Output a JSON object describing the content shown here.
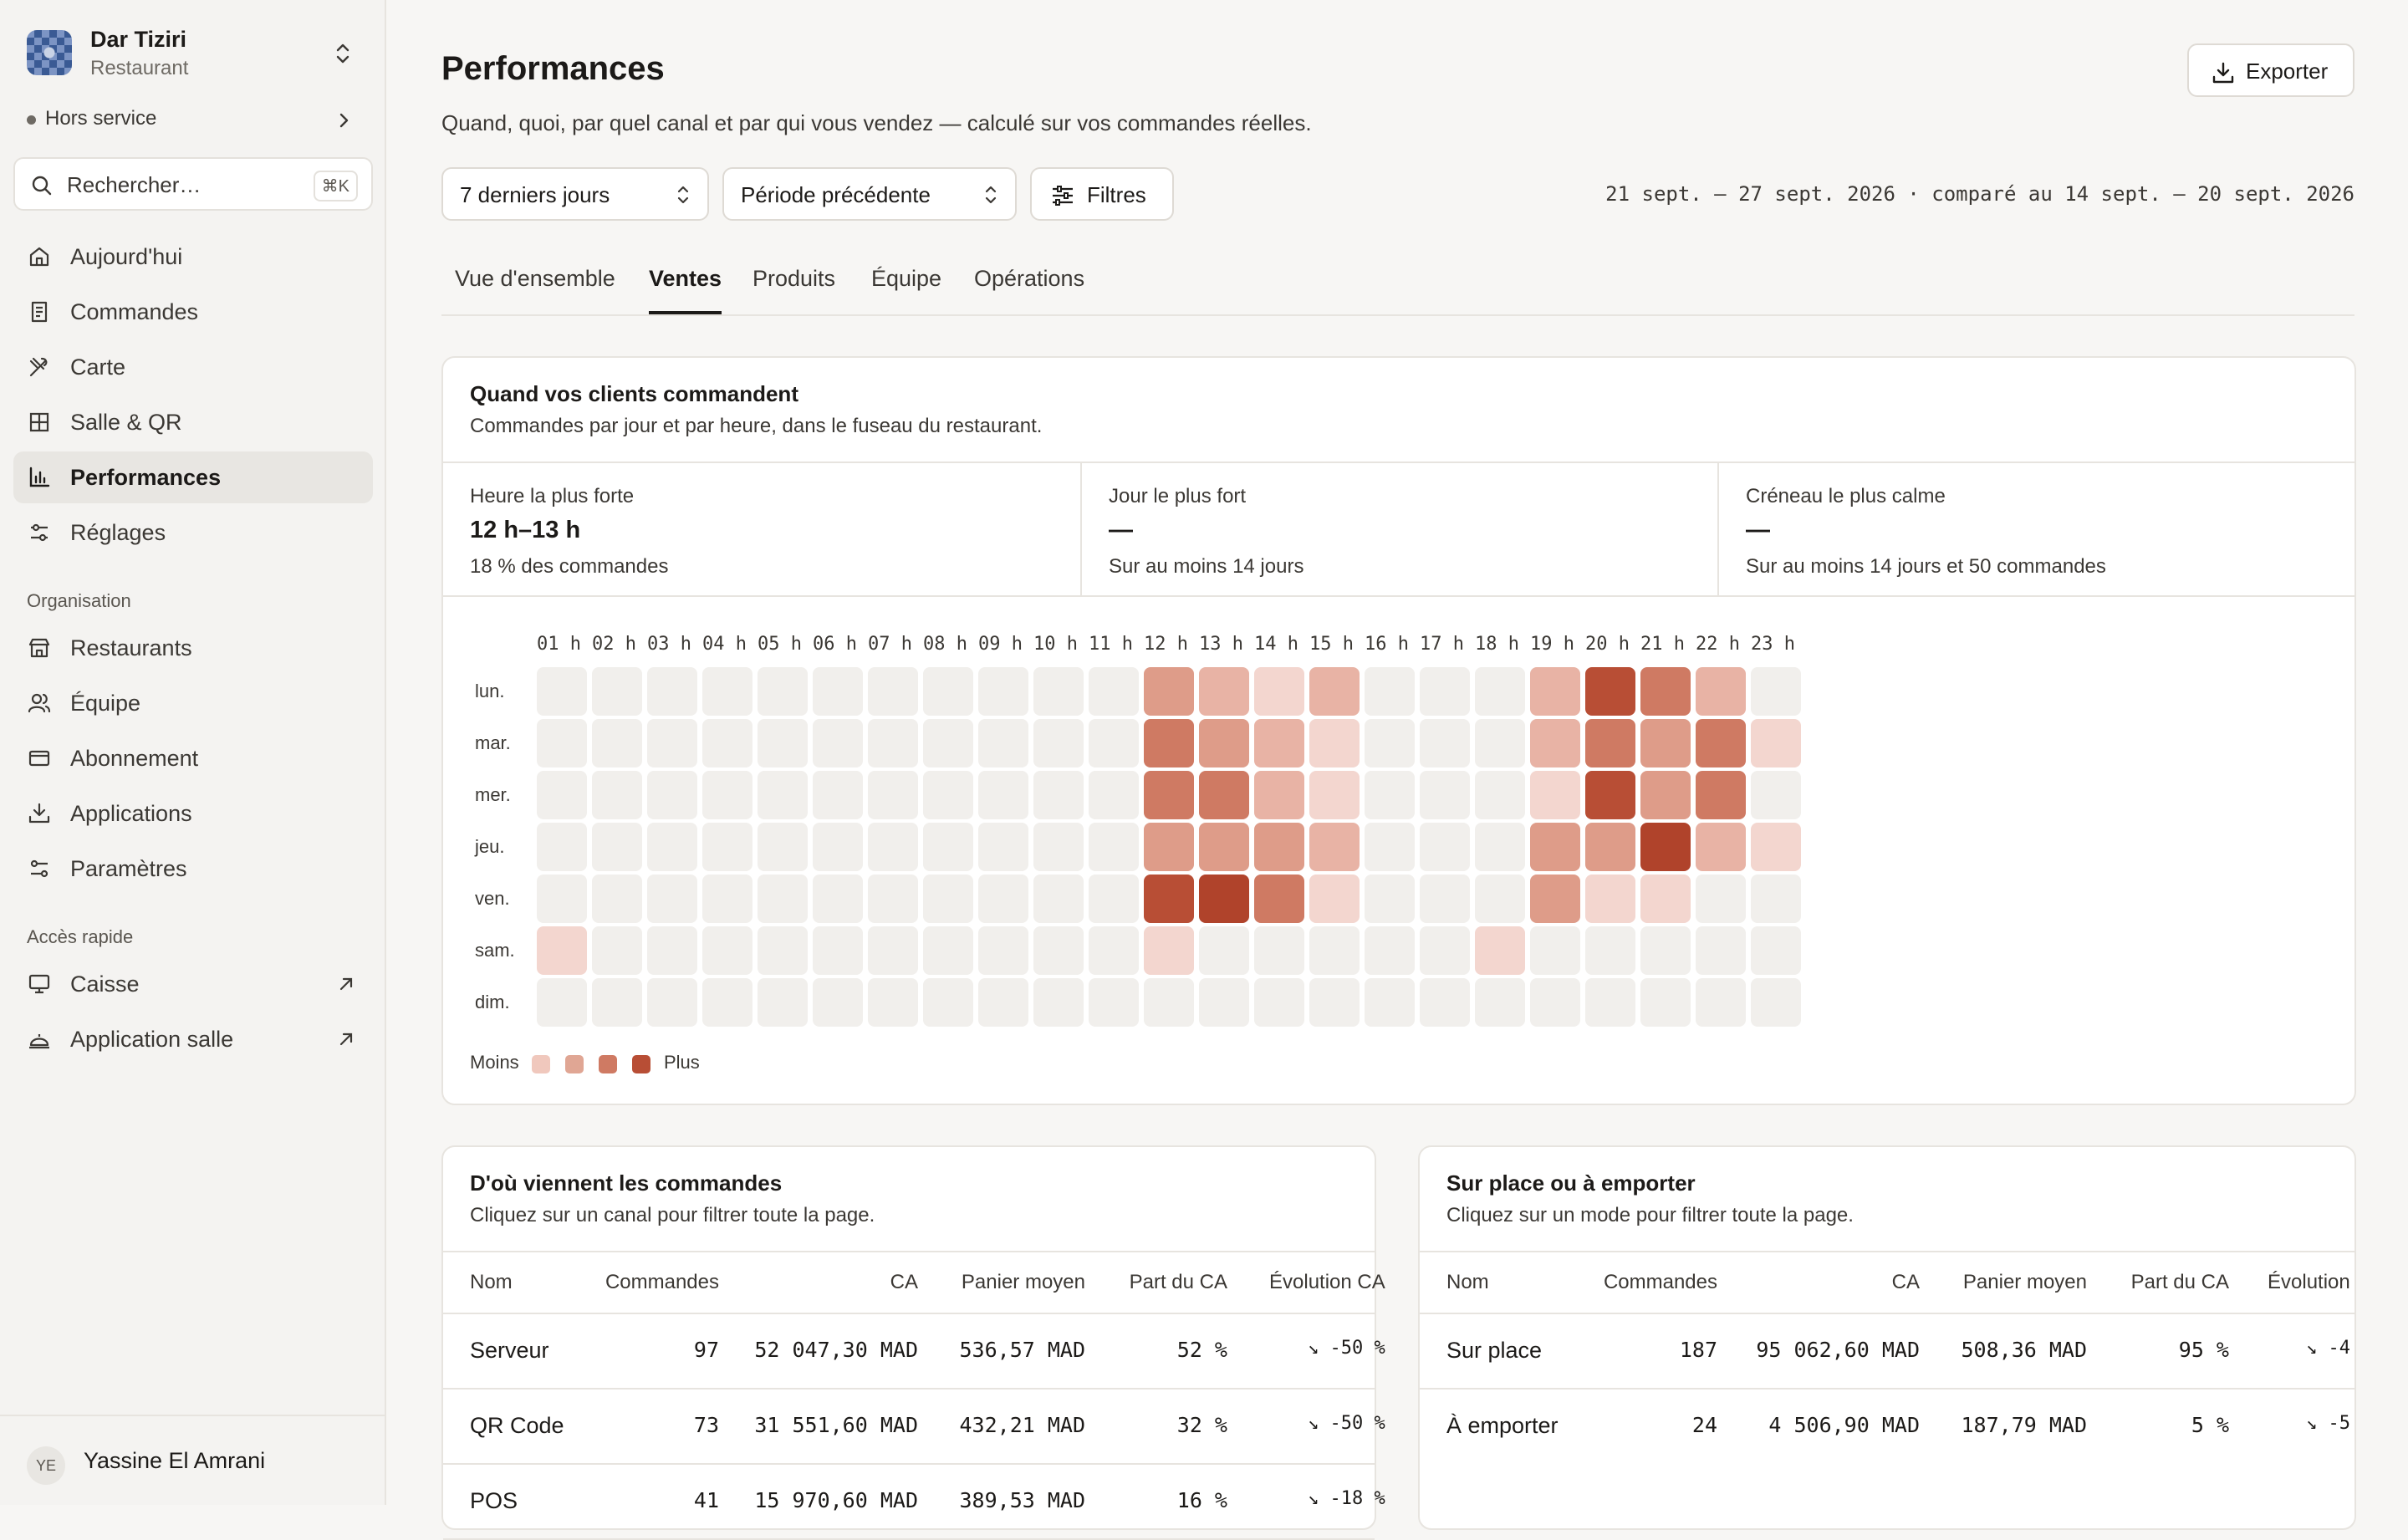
{
  "org": {
    "name": "Dar Tiziri",
    "type": "Restaurant"
  },
  "status": {
    "label": "Hors service"
  },
  "search": {
    "placeholder": "Rechercher…",
    "shortcut": "⌘K"
  },
  "nav": [
    {
      "label": "Aujourd'hui",
      "icon": "home-icon"
    },
    {
      "label": "Commandes",
      "icon": "receipt-icon"
    },
    {
      "label": "Carte",
      "icon": "utensils-icon"
    },
    {
      "label": "Salle & QR",
      "icon": "grid-icon"
    },
    {
      "label": "Performances",
      "icon": "bar-chart-icon",
      "active": true
    },
    {
      "label": "Réglages",
      "icon": "sliders-icon"
    }
  ],
  "org_section": {
    "label": "Organisation",
    "items": [
      {
        "label": "Restaurants",
        "icon": "store-icon"
      },
      {
        "label": "Équipe",
        "icon": "users-icon"
      },
      {
        "label": "Abonnement",
        "icon": "credit-card-icon"
      },
      {
        "label": "Applications",
        "icon": "download-icon"
      },
      {
        "label": "Paramètres",
        "icon": "settings-icon"
      }
    ]
  },
  "quick_section": {
    "label": "Accès rapide",
    "items": [
      {
        "label": "Caisse",
        "icon": "monitor-icon"
      },
      {
        "label": "Application salle",
        "icon": "cloche-icon"
      }
    ]
  },
  "user": {
    "initials": "YE",
    "name": "Yassine El Amrani"
  },
  "header": {
    "title": "Performances",
    "subtitle": "Quand, quoi, par quel canal et par qui vous vendez — calculé sur vos commandes réelles.",
    "export_label": "Exporter"
  },
  "filters": {
    "period": "7 derniers jours",
    "comparison": "Période précédente",
    "filters_label": "Filtres",
    "date_range": "21 sept. – 27 sept. 2026 · comparé au 14 sept. – 20 sept. 2026"
  },
  "tabs": [
    {
      "label": "Vue d'ensemble"
    },
    {
      "label": "Ventes",
      "active": true
    },
    {
      "label": "Produits"
    },
    {
      "label": "Équipe"
    },
    {
      "label": "Opérations"
    }
  ],
  "heatmap_card": {
    "title": "Quand vos clients commandent",
    "subtitle": "Commandes par jour et par heure, dans le fuseau du restaurant.",
    "stats": [
      {
        "label": "Heure la plus forte",
        "value": "12 h–13 h",
        "sub": "18 % des commandes"
      },
      {
        "label": "Jour le plus fort",
        "value": "—",
        "sub": "Sur au moins 14 jours"
      },
      {
        "label": "Créneau le plus calme",
        "value": "—",
        "sub": "Sur au moins 14 jours et 50 commandes"
      }
    ],
    "legend_less": "Moins",
    "legend_more": "Plus",
    "colors": [
      "#f1efec",
      "#f3d6cf",
      "#e8b3a5",
      "#de9c89",
      "#cf7a63",
      "#b84e35",
      "#b0432b"
    ]
  },
  "chart_data": {
    "type": "heatmap",
    "x": [
      "01 h",
      "02 h",
      "03 h",
      "04 h",
      "05 h",
      "06 h",
      "07 h",
      "08 h",
      "09 h",
      "10 h",
      "11 h",
      "12 h",
      "13 h",
      "14 h",
      "15 h",
      "16 h",
      "17 h",
      "18 h",
      "19 h",
      "20 h",
      "21 h",
      "22 h",
      "23 h"
    ],
    "y": [
      "lun.",
      "mar.",
      "mer.",
      "jeu.",
      "ven.",
      "sam.",
      "dim."
    ],
    "values": [
      [
        0,
        0,
        0,
        0,
        0,
        0,
        0,
        0,
        0,
        0,
        0,
        3,
        2,
        1,
        2,
        0,
        0,
        0,
        2,
        5,
        4,
        2,
        0
      ],
      [
        0,
        0,
        0,
        0,
        0,
        0,
        0,
        0,
        0,
        0,
        0,
        4,
        3,
        2,
        1,
        0,
        0,
        0,
        2,
        4,
        3,
        4,
        1
      ],
      [
        0,
        0,
        0,
        0,
        0,
        0,
        0,
        0,
        0,
        0,
        0,
        4,
        4,
        2,
        1,
        0,
        0,
        0,
        1,
        5,
        3,
        4,
        0
      ],
      [
        0,
        0,
        0,
        0,
        0,
        0,
        0,
        0,
        0,
        0,
        0,
        3,
        3,
        3,
        2,
        0,
        0,
        0,
        3,
        3,
        6,
        2,
        1
      ],
      [
        0,
        0,
        0,
        0,
        0,
        0,
        0,
        0,
        0,
        0,
        0,
        5,
        6,
        4,
        1,
        0,
        0,
        0,
        3,
        1,
        1,
        0,
        0
      ],
      [
        1,
        0,
        0,
        0,
        0,
        0,
        0,
        0,
        0,
        0,
        0,
        1,
        0,
        0,
        0,
        0,
        0,
        1,
        0,
        0,
        0,
        0,
        0
      ],
      [
        0,
        0,
        0,
        0,
        0,
        0,
        0,
        0,
        0,
        0,
        0,
        0,
        0,
        0,
        0,
        0,
        0,
        0,
        0,
        0,
        0,
        0,
        0
      ]
    ]
  },
  "channels": {
    "title": "D'où viennent les commandes",
    "subtitle": "Cliquez sur un canal pour filtrer toute la page.",
    "columns": [
      "Nom",
      "Commandes",
      "CA",
      "Panier moyen",
      "Part du CA",
      "Évolution CA"
    ],
    "rows": [
      {
        "name": "Serveur",
        "orders": "97",
        "ca": "52 047,30 MAD",
        "avg": "536,57 MAD",
        "share": "52 %",
        "evo": "↘ -50 %"
      },
      {
        "name": "QR Code",
        "orders": "73",
        "ca": "31 551,60 MAD",
        "avg": "432,21 MAD",
        "share": "32 %",
        "evo": "↘ -50 %"
      },
      {
        "name": "POS",
        "orders": "41",
        "ca": "15 970,60 MAD",
        "avg": "389,53 MAD",
        "share": "16 %",
        "evo": "↘ -18 %"
      }
    ]
  },
  "modes": {
    "title": "Sur place ou à emporter",
    "subtitle": "Cliquez sur un mode pour filtrer toute la page.",
    "columns": [
      "Nom",
      "Commandes",
      "CA",
      "Panier moyen",
      "Part du CA",
      "Évolution"
    ],
    "rows": [
      {
        "name": "Sur place",
        "orders": "187",
        "ca": "95 062,60 MAD",
        "avg": "508,36 MAD",
        "share": "95 %",
        "evo": "↘ -4"
      },
      {
        "name": "À emporter",
        "orders": "24",
        "ca": "4 506,90 MAD",
        "avg": "187,79 MAD",
        "share": "5 %",
        "evo": "↘ -5"
      }
    ]
  }
}
